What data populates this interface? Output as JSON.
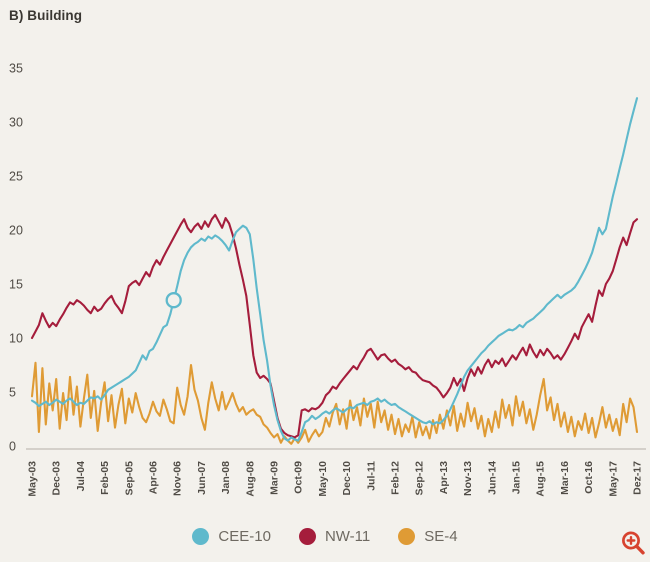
{
  "title": "B) Building",
  "background_color": "#f3f1ec",
  "axis": {
    "baseline_color": "#c9c6be",
    "label_color": "#4f4b45"
  },
  "zoom_icon_color": "#d7432f",
  "chart_data": {
    "type": "line",
    "title": "B) Building",
    "x_unit": "month",
    "x_start": "May-03",
    "x_end": "Dez-17",
    "n_points": 176,
    "x_tick_labels": [
      "May-03",
      "Dec-03",
      "Jul-04",
      "Feb-05",
      "Sep-05",
      "Apr-06",
      "Nov-06",
      "Jun-07",
      "Jan-08",
      "Aug-08",
      "Mar-09",
      "Oct-09",
      "May-10",
      "Dec-10",
      "Jul-11",
      "Feb-12",
      "Sep-12",
      "Apr-13",
      "Nov-13",
      "Jun-14",
      "Jan-15",
      "Aug-15",
      "Mar-16",
      "Oct-16",
      "May-17",
      "Dez-17"
    ],
    "x_tick_every_n_months": 7,
    "y_ticks": [
      0,
      5,
      10,
      15,
      20,
      25,
      30,
      35
    ],
    "ylim": [
      0,
      35
    ],
    "grid": false,
    "legend_position": "bottom-center",
    "marker": {
      "series": "CEE-10",
      "month_index": 41,
      "value": 13.5,
      "shape": "open-circle"
    },
    "series": [
      {
        "name": "SE-4",
        "color": "#df9b35",
        "values": [
          4.6,
          7.7,
          1.3,
          7.2,
          2.0,
          5.8,
          3.3,
          6.2,
          1.6,
          4.9,
          2.4,
          6.4,
          2.9,
          5.5,
          1.8,
          4.4,
          6.6,
          2.6,
          5.1,
          1.4,
          4.0,
          5.9,
          2.3,
          4.7,
          1.7,
          3.8,
          5.3,
          2.1,
          4.4,
          3.1,
          4.9,
          3.6,
          2.6,
          2.2,
          3.0,
          4.1,
          3.2,
          2.8,
          4.3,
          3.4,
          2.3,
          2.1,
          5.4,
          3.8,
          2.9,
          4.6,
          7.5,
          5.2,
          4.2,
          2.6,
          1.5,
          4.0,
          5.9,
          4.4,
          3.3,
          5.0,
          3.4,
          4.1,
          4.9,
          3.9,
          3.2,
          3.6,
          2.9,
          3.2,
          3.4,
          2.9,
          2.7,
          2.0,
          1.7,
          1.2,
          0.8,
          1.1,
          0.3,
          0.9,
          0.5,
          0.2,
          0.7,
          0.3,
          0.8,
          1.5,
          0.4,
          1.0,
          1.5,
          0.9,
          1.3,
          2.6,
          1.8,
          3.1,
          3.9,
          2.0,
          3.4,
          1.6,
          4.2,
          2.4,
          3.6,
          1.9,
          4.4,
          2.7,
          3.9,
          1.7,
          4.1,
          2.2,
          3.3,
          1.5,
          2.9,
          1.1,
          2.5,
          0.9,
          2.0,
          1.3,
          2.7,
          0.8,
          2.2,
          1.0,
          1.8,
          0.7,
          2.4,
          1.2,
          2.9,
          1.6,
          3.3,
          1.9,
          3.7,
          1.4,
          3.0,
          1.8,
          4.0,
          2.3,
          3.5,
          1.6,
          2.8,
          0.9,
          2.5,
          1.3,
          3.2,
          1.7,
          4.3,
          2.6,
          3.8,
          1.9,
          4.6,
          2.8,
          4.1,
          2.1,
          3.4,
          1.5,
          2.9,
          4.7,
          6.2,
          3.3,
          4.5,
          2.4,
          3.9,
          1.8,
          3.1,
          1.3,
          2.7,
          0.9,
          2.3,
          1.5,
          3.0,
          1.2,
          2.6,
          0.8,
          2.1,
          3.6,
          1.7,
          2.9,
          1.4,
          2.5,
          1.0,
          3.9,
          2.2,
          4.4,
          3.6,
          1.3
        ]
      },
      {
        "name": "NW-11",
        "color": "#a51d3c",
        "values": [
          10.0,
          10.6,
          11.2,
          12.3,
          11.6,
          11.0,
          11.4,
          11.1,
          11.7,
          12.2,
          12.8,
          13.3,
          13.1,
          13.5,
          13.3,
          13.0,
          12.6,
          12.3,
          12.9,
          12.5,
          12.7,
          13.2,
          13.6,
          13.9,
          13.2,
          12.8,
          12.3,
          13.4,
          14.8,
          15.1,
          15.3,
          14.9,
          15.5,
          16.1,
          15.7,
          16.6,
          17.2,
          16.8,
          17.5,
          18.1,
          18.7,
          19.3,
          19.9,
          20.5,
          21.0,
          20.2,
          19.8,
          20.3,
          20.6,
          20.1,
          20.8,
          20.3,
          21.0,
          21.4,
          20.8,
          20.2,
          21.1,
          20.6,
          19.6,
          18.3,
          16.8,
          15.4,
          13.9,
          11.2,
          8.4,
          6.8,
          6.3,
          6.5,
          6.2,
          5.8,
          4.2,
          2.6,
          1.6,
          1.2,
          1.0,
          0.9,
          0.8,
          1.0,
          3.3,
          3.4,
          3.2,
          3.5,
          3.4,
          3.6,
          4.0,
          4.7,
          5.0,
          5.5,
          5.3,
          5.8,
          6.2,
          6.6,
          7.0,
          7.4,
          7.1,
          7.7,
          8.2,
          8.8,
          9.0,
          8.5,
          8.0,
          8.4,
          8.5,
          8.1,
          7.8,
          8.0,
          7.6,
          7.4,
          7.1,
          7.3,
          6.9,
          6.8,
          6.4,
          6.1,
          6.0,
          5.9,
          5.6,
          5.4,
          5.0,
          4.5,
          4.9,
          5.4,
          6.3,
          5.6,
          6.2,
          5.1,
          6.3,
          7.1,
          6.5,
          7.3,
          6.7,
          7.5,
          8.0,
          7.3,
          7.9,
          7.6,
          8.1,
          7.4,
          7.9,
          8.4,
          8.0,
          8.6,
          9.1,
          8.4,
          9.4,
          8.7,
          8.2,
          8.9,
          8.4,
          9.0,
          8.6,
          8.1,
          8.4,
          8.0,
          8.5,
          9.1,
          9.7,
          10.4,
          9.9,
          11.0,
          11.6,
          12.2,
          11.5,
          13.0,
          14.4,
          13.9,
          15.0,
          15.5,
          16.2,
          17.3,
          18.4,
          19.3,
          18.6,
          19.7,
          20.7,
          21.0
        ]
      },
      {
        "name": "CEE-10",
        "color": "#5fb9cc",
        "values": [
          4.2,
          4.0,
          3.7,
          3.9,
          4.1,
          3.8,
          4.0,
          4.3,
          4.1,
          3.9,
          4.2,
          4.4,
          4.1,
          3.8,
          4.0,
          3.9,
          4.2,
          4.5,
          4.4,
          4.6,
          4.3,
          4.7,
          5.2,
          5.4,
          5.6,
          5.8,
          6.0,
          6.2,
          6.4,
          6.7,
          7.0,
          7.7,
          8.4,
          8.0,
          8.8,
          9.0,
          9.6,
          10.3,
          11.0,
          11.2,
          12.2,
          13.5,
          14.8,
          16.2,
          17.2,
          17.9,
          18.4,
          18.7,
          18.9,
          19.2,
          19.0,
          19.4,
          19.2,
          19.5,
          19.3,
          19.0,
          18.6,
          18.1,
          19.0,
          19.8,
          20.1,
          20.4,
          20.2,
          19.6,
          17.3,
          14.6,
          12.2,
          9.8,
          7.9,
          5.6,
          3.8,
          2.4,
          1.4,
          0.7,
          0.5,
          0.8,
          0.6,
          0.5,
          1.3,
          2.2,
          2.4,
          2.8,
          2.5,
          2.7,
          3.0,
          3.2,
          3.0,
          3.3,
          3.5,
          3.3,
          3.1,
          3.4,
          3.6,
          3.5,
          3.8,
          3.9,
          4.0,
          3.8,
          4.1,
          4.2,
          4.4,
          4.1,
          4.3,
          4.0,
          3.8,
          3.9,
          3.6,
          3.4,
          3.2,
          3.0,
          2.8,
          2.6,
          2.4,
          2.2,
          2.1,
          2.3,
          2.0,
          2.2,
          2.1,
          2.4,
          2.8,
          3.4,
          4.1,
          4.8,
          5.6,
          6.4,
          7.0,
          7.4,
          7.8,
          8.2,
          8.6,
          8.9,
          9.3,
          9.6,
          9.9,
          10.2,
          10.4,
          10.6,
          10.8,
          10.7,
          10.9,
          11.2,
          11.0,
          11.4,
          11.6,
          11.8,
          12.1,
          12.4,
          12.7,
          13.1,
          13.4,
          13.7,
          14.0,
          13.7,
          14.0,
          14.2,
          14.4,
          14.7,
          15.2,
          15.8,
          16.4,
          17.1,
          17.9,
          19.0,
          20.2,
          19.6,
          20.1,
          21.6,
          23.1,
          24.4,
          25.7,
          27.0,
          28.4,
          29.8,
          31.0,
          32.2
        ]
      }
    ],
    "legend_order": [
      "CEE-10",
      "NW-11",
      "SE-4"
    ]
  }
}
